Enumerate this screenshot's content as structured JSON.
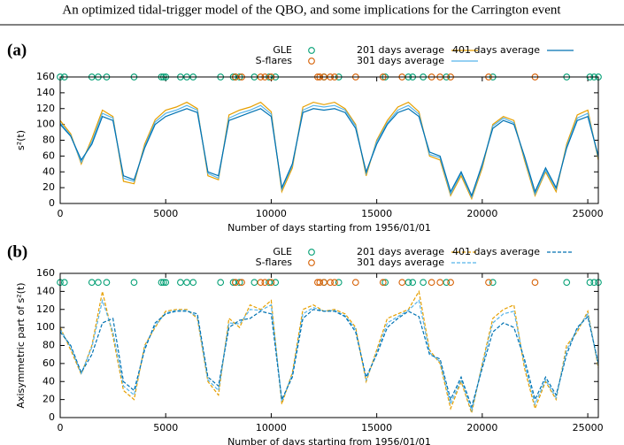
{
  "header": {
    "title": "An optimized tidal-trigger model of the QBO, and some implications for the Carrington event"
  },
  "chart_data": [
    {
      "type": "line",
      "panel_label": "(a)",
      "x_label": "Number of days starting from 1956/01/01",
      "y_label": "s²(t)",
      "xlim": [
        0,
        25500
      ],
      "ylim": [
        0,
        160
      ],
      "xticks": [
        0,
        5000,
        10000,
        15000,
        20000,
        25000
      ],
      "yticks": [
        0,
        20,
        40,
        60,
        80,
        100,
        120,
        140,
        160
      ],
      "dashed": false,
      "x": [
        0,
        500,
        1000,
        1500,
        2000,
        2500,
        3000,
        3500,
        4000,
        4500,
        5000,
        5500,
        6000,
        6500,
        7000,
        7500,
        8000,
        8500,
        9000,
        9500,
        10000,
        10500,
        11000,
        11500,
        12000,
        12500,
        13000,
        13500,
        14000,
        14500,
        15000,
        15500,
        16000,
        16500,
        17000,
        17500,
        18000,
        18500,
        19000,
        19500,
        20000,
        20500,
        21000,
        21500,
        22000,
        22500,
        23000,
        23500,
        24000,
        24500,
        25000,
        25500
      ],
      "markers": [
        {
          "name": "GLE",
          "color": "#009e73",
          "x": [
            0,
            200,
            1500,
            1800,
            2200,
            3500,
            4800,
            4900,
            5000,
            5700,
            6000,
            6300,
            7600,
            8200,
            8300,
            8500,
            9200,
            9900,
            10200,
            12500,
            13200,
            15400,
            16500,
            16700,
            17200,
            18300,
            20500,
            24000,
            25100,
            25300,
            25500
          ],
          "values": [
            160,
            160,
            160,
            160,
            160,
            160,
            160,
            160,
            160,
            160,
            160,
            160,
            160,
            160,
            160,
            160,
            160,
            160,
            160,
            160,
            160,
            160,
            160,
            160,
            160,
            160,
            160,
            160,
            160,
            160,
            160
          ]
        },
        {
          "name": "S-flares",
          "color": "#d55e00",
          "x": [
            8300,
            8600,
            9500,
            9700,
            10000,
            12200,
            12300,
            12500,
            12800,
            13000,
            14000,
            15300,
            16200,
            17600,
            18000,
            18500,
            20300,
            22500
          ],
          "values": [
            160,
            160,
            160,
            160,
            160,
            160,
            160,
            160,
            160,
            160,
            160,
            160,
            160,
            160,
            160,
            160,
            160,
            160
          ]
        }
      ],
      "series": [
        {
          "name": "201 days average",
          "color": "#e69f00",
          "values": [
            105,
            88,
            50,
            82,
            118,
            110,
            28,
            25,
            75,
            106,
            118,
            122,
            128,
            120,
            35,
            30,
            112,
            118,
            122,
            128,
            116,
            15,
            45,
            122,
            128,
            125,
            128,
            120,
            100,
            35,
            80,
            105,
            122,
            128,
            116,
            60,
            55,
            10,
            35,
            6,
            45,
            100,
            110,
            105,
            55,
            10,
            40,
            15,
            75,
            112,
            118,
            55
          ]
        },
        {
          "name": "301 days average",
          "color": "#56b4e9",
          "values": [
            102,
            86,
            52,
            78,
            114,
            108,
            32,
            28,
            72,
            103,
            114,
            118,
            124,
            118,
            38,
            32,
            108,
            114,
            118,
            124,
            113,
            18,
            48,
            118,
            124,
            122,
            124,
            118,
            98,
            38,
            78,
            102,
            118,
            124,
            113,
            62,
            58,
            12,
            38,
            8,
            48,
            98,
            108,
            102,
            58,
            12,
            42,
            18,
            72,
            108,
            114,
            58
          ]
        },
        {
          "name": "401 days average",
          "color": "#0072b2",
          "values": [
            100,
            85,
            55,
            75,
            110,
            105,
            35,
            30,
            70,
            100,
            110,
            115,
            120,
            115,
            40,
            35,
            105,
            110,
            115,
            120,
            110,
            20,
            50,
            115,
            120,
            118,
            120,
            115,
            95,
            40,
            75,
            100,
            115,
            120,
            110,
            65,
            60,
            15,
            40,
            10,
            50,
            95,
            105,
            100,
            60,
            15,
            45,
            20,
            70,
            105,
            110,
            60
          ]
        }
      ]
    },
    {
      "type": "line",
      "panel_label": "(b)",
      "x_label": "Number of days starting from 1956/01/01",
      "y_label": "Axisymmetric part of s²(t)",
      "xlim": [
        0,
        25500
      ],
      "ylim": [
        0,
        160
      ],
      "xticks": [
        0,
        5000,
        10000,
        15000,
        20000,
        25000
      ],
      "yticks": [
        0,
        20,
        40,
        60,
        80,
        100,
        120,
        140,
        160
      ],
      "dashed": true,
      "x": [
        0,
        500,
        1000,
        1500,
        2000,
        2500,
        3000,
        3500,
        4000,
        4500,
        5000,
        5500,
        6000,
        6500,
        7000,
        7500,
        8000,
        8500,
        9000,
        9500,
        10000,
        10500,
        11000,
        11500,
        12000,
        12500,
        13000,
        13500,
        14000,
        14500,
        15000,
        15500,
        16000,
        16500,
        17000,
        17500,
        18000,
        18500,
        19000,
        19500,
        20000,
        20500,
        21000,
        21500,
        22000,
        22500,
        23000,
        23500,
        24000,
        24500,
        25000,
        25500
      ],
      "markers": [
        {
          "name": "GLE",
          "color": "#009e73",
          "x": [
            0,
            200,
            1500,
            1800,
            2200,
            3500,
            4800,
            4900,
            5000,
            5700,
            6000,
            6300,
            7600,
            8200,
            8300,
            8500,
            9200,
            9900,
            10200,
            12500,
            13200,
            15400,
            16500,
            16700,
            17200,
            18300,
            20500,
            24000,
            25100,
            25300,
            25500
          ],
          "values": [
            150,
            150,
            150,
            150,
            150,
            150,
            150,
            150,
            150,
            150,
            150,
            150,
            150,
            150,
            150,
            150,
            150,
            150,
            150,
            150,
            150,
            150,
            150,
            150,
            150,
            150,
            150,
            150,
            150,
            150,
            150
          ]
        },
        {
          "name": "S-flares",
          "color": "#d55e00",
          "x": [
            8300,
            8600,
            9500,
            9700,
            10000,
            12200,
            12300,
            12500,
            12800,
            13000,
            14000,
            15300,
            16200,
            17600,
            18000,
            18500,
            20300,
            22500
          ],
          "values": [
            150,
            150,
            150,
            150,
            150,
            150,
            150,
            150,
            150,
            150,
            150,
            150,
            150,
            150,
            150,
            150,
            150,
            150
          ]
        }
      ],
      "series": [
        {
          "name": "201 days average",
          "color": "#e69f00",
          "values": [
            100,
            75,
            48,
            80,
            140,
            90,
            30,
            20,
            80,
            100,
            118,
            120,
            120,
            110,
            40,
            25,
            110,
            100,
            125,
            120,
            130,
            15,
            50,
            120,
            125,
            118,
            120,
            115,
            100,
            40,
            75,
            110,
            115,
            120,
            140,
            75,
            60,
            10,
            40,
            5,
            60,
            110,
            120,
            125,
            55,
            10,
            40,
            20,
            80,
            95,
            118,
            55
          ]
        },
        {
          "name": "301 days average",
          "color": "#56b4e9",
          "values": [
            98,
            78,
            49,
            78,
            130,
            95,
            35,
            25,
            78,
            102,
            116,
            119,
            119,
            112,
            42,
            30,
            105,
            104,
            120,
            119,
            125,
            18,
            48,
            115,
            122,
            118,
            119,
            113,
            98,
            42,
            72,
            105,
            112,
            119,
            130,
            72,
            62,
            15,
            42,
            8,
            58,
            105,
            115,
            118,
            60,
            15,
            42,
            22,
            75,
            98,
            115,
            58
          ]
        },
        {
          "name": "401 days average",
          "color": "#0072b2",
          "values": [
            95,
            80,
            50,
            70,
            105,
            110,
            40,
            30,
            75,
            105,
            115,
            118,
            118,
            115,
            45,
            35,
            100,
            108,
            110,
            118,
            115,
            20,
            45,
            110,
            120,
            118,
            118,
            112,
            95,
            45,
            70,
            100,
            110,
            118,
            112,
            70,
            65,
            20,
            45,
            12,
            55,
            95,
            105,
            100,
            65,
            20,
            45,
            25,
            70,
            100,
            112,
            60
          ]
        }
      ]
    }
  ]
}
